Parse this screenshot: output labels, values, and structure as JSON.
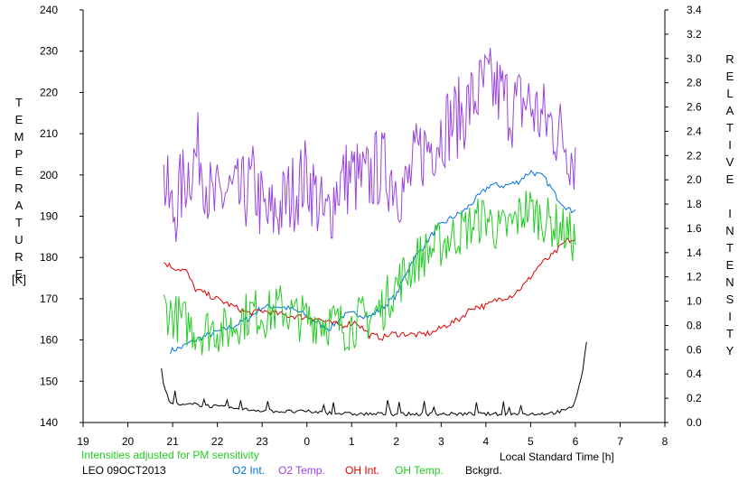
{
  "chart_data": {
    "type": "line",
    "station_label": "LEO 09OCT2013",
    "note": "Intensities adjusted for PM sensitivity",
    "xlabel": "Local Standard Time [h]",
    "ylabel_left": "TEMPERATURE",
    "ylabel_left_unit": "[K]",
    "ylabel_right": "RELATIVE INTENSITY",
    "x_ticks": [
      "19",
      "20",
      "21",
      "22",
      "23",
      "0",
      "1",
      "2",
      "3",
      "4",
      "5",
      "6",
      "7",
      "8"
    ],
    "y_left_ticks": [
      "140",
      "150",
      "160",
      "170",
      "180",
      "190",
      "200",
      "210",
      "220",
      "230",
      "240"
    ],
    "y_right_ticks": [
      "0.0",
      "0.2",
      "0.4",
      "0.6",
      "0.8",
      "1.0",
      "1.2",
      "1.4",
      "1.6",
      "1.8",
      "2.0",
      "2.2",
      "2.4",
      "2.6",
      "2.8",
      "3.0",
      "3.2",
      "3.4"
    ],
    "xlim": [
      19,
      32
    ],
    "ylim_left": [
      140,
      240
    ],
    "ylim_right": [
      0,
      3.4
    ],
    "colors": {
      "o2_int": "#0070e0",
      "o2_temp": "#9944dd",
      "oh_int": "#dd0000",
      "oh_temp": "#22cc22",
      "bckgrd": "#000000",
      "note": "#22cc22"
    },
    "series": [
      {
        "name": "O2 Int.",
        "axis": "right",
        "color": "#0070e0",
        "x": [
          20.95,
          21.2,
          21.5,
          21.8,
          22.1,
          22.4,
          22.7,
          23.0,
          23.3,
          23.6,
          23.9,
          24.2,
          24.5,
          24.8,
          25.1,
          25.4,
          25.7,
          26.0,
          26.3,
          26.6,
          26.9,
          27.2,
          27.5,
          27.8,
          28.1,
          28.4,
          28.7,
          29.0,
          29.3,
          29.6,
          29.9,
          30.0
        ],
        "y": [
          0.59,
          0.62,
          0.68,
          0.72,
          0.76,
          0.8,
          0.86,
          0.95,
          0.96,
          0.94,
          0.9,
          0.83,
          0.77,
          0.88,
          0.9,
          0.87,
          0.95,
          1.05,
          1.3,
          1.45,
          1.6,
          1.68,
          1.74,
          1.85,
          1.96,
          1.95,
          1.98,
          2.07,
          2.02,
          1.85,
          1.74,
          1.77
        ]
      },
      {
        "name": "O2 Temp.",
        "axis": "left",
        "color": "#9944dd",
        "x": [
          20.8,
          21.0,
          21.3,
          21.6,
          21.9,
          22.2,
          22.5,
          22.8,
          23.1,
          23.4,
          23.7,
          24.0,
          24.2,
          24.4,
          24.7,
          25.0,
          25.3,
          25.6,
          25.9,
          26.2,
          26.5,
          26.8,
          27.1,
          27.4,
          27.7,
          28.0,
          28.3,
          28.6,
          28.9,
          29.2,
          29.5,
          29.8,
          30.0
        ],
        "y": [
          199,
          190,
          200,
          206,
          192,
          196,
          194,
          198,
          189,
          192,
          196,
          200,
          195,
          188,
          198,
          200,
          198,
          202,
          200,
          196,
          205,
          208,
          212,
          214,
          218,
          222,
          220,
          216,
          218,
          214,
          212,
          208,
          204
        ],
        "amp": 10
      },
      {
        "name": "OH Int.",
        "axis": "right",
        "color": "#dd0000",
        "x": [
          20.8,
          21.0,
          21.3,
          21.5,
          21.8,
          22.1,
          22.4,
          22.7,
          23.0,
          23.3,
          23.6,
          23.9,
          24.2,
          24.5,
          24.8,
          25.1,
          25.4,
          25.7,
          25.9,
          26.2,
          26.5,
          26.8,
          27.1,
          27.4,
          27.7,
          28.0,
          28.3,
          28.6,
          28.9,
          29.2,
          29.5,
          29.8,
          30.0
        ],
        "y": [
          1.32,
          1.28,
          1.25,
          1.1,
          1.05,
          1.0,
          0.95,
          0.9,
          0.92,
          0.9,
          0.88,
          0.87,
          0.86,
          0.82,
          0.8,
          0.83,
          0.72,
          0.7,
          0.73,
          0.73,
          0.72,
          0.74,
          0.8,
          0.85,
          0.95,
          0.96,
          1.02,
          1.05,
          1.15,
          1.3,
          1.38,
          1.5,
          1.5
        ]
      },
      {
        "name": "OH Temp.",
        "axis": "left",
        "color": "#22cc22",
        "x": [
          20.8,
          21.0,
          21.3,
          21.6,
          21.9,
          22.2,
          22.5,
          22.8,
          23.1,
          23.4,
          23.7,
          24.0,
          24.3,
          24.6,
          24.9,
          25.2,
          25.5,
          25.7,
          25.9,
          26.2,
          26.5,
          26.8,
          27.1,
          27.4,
          27.7,
          28.0,
          28.3,
          28.6,
          28.9,
          29.2,
          29.5,
          29.8,
          30.0
        ],
        "y": [
          168,
          166,
          164,
          162,
          163,
          162,
          165,
          167,
          166,
          168,
          166,
          165,
          165,
          164,
          163,
          165,
          166,
          168,
          172,
          176,
          180,
          182,
          184,
          186,
          188,
          190,
          186,
          188,
          192,
          190,
          188,
          186,
          184
        ],
        "amp": 6
      },
      {
        "name": "Bckgrd.",
        "axis": "right",
        "color": "#000000",
        "x": [
          20.75,
          20.8,
          20.9,
          21.0,
          21.2,
          21.5,
          22.0,
          22.5,
          23.0,
          23.5,
          24.0,
          24.5,
          25.0,
          25.5,
          26.0,
          26.5,
          27.0,
          27.5,
          28.0,
          28.5,
          29.0,
          29.5,
          29.8,
          29.95,
          30.05,
          30.15,
          30.25
        ],
        "y": [
          0.45,
          0.3,
          0.2,
          0.16,
          0.14,
          0.15,
          0.13,
          0.11,
          0.1,
          0.09,
          0.09,
          0.08,
          0.07,
          0.07,
          0.07,
          0.07,
          0.07,
          0.07,
          0.07,
          0.07,
          0.07,
          0.08,
          0.1,
          0.14,
          0.25,
          0.4,
          0.65
        ]
      }
    ]
  }
}
